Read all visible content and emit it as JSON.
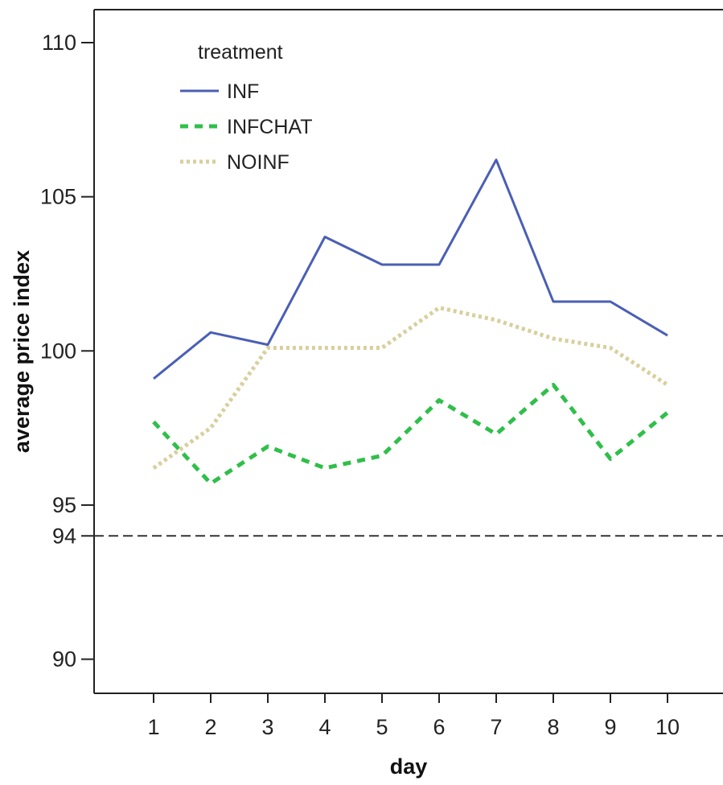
{
  "chart_data": {
    "type": "line",
    "title": "",
    "xlabel": "day",
    "ylabel": "average price index",
    "categories": [
      "1",
      "2",
      "3",
      "4",
      "5",
      "6",
      "7",
      "8",
      "9",
      "10"
    ],
    "yticks": [
      "110",
      "105",
      "100",
      "95",
      "94",
      "90"
    ],
    "ylim": [
      89,
      111
    ],
    "legend": {
      "title": "treatment",
      "placement": "top-left"
    },
    "series": [
      {
        "name": "INF",
        "style": "solid",
        "color": "#4a5fb5",
        "values": [
          99.1,
          100.6,
          100.2,
          103.7,
          102.8,
          102.8,
          106.2,
          101.6,
          101.6,
          100.5
        ]
      },
      {
        "name": "INFCHAT",
        "style": "dashed",
        "color": "#2fbf4a",
        "values": [
          97.7,
          95.7,
          96.9,
          96.2,
          96.6,
          98.4,
          97.3,
          98.9,
          96.5,
          98.0
        ]
      },
      {
        "name": "NOINF",
        "style": "dotted",
        "color": "#d8cf9c",
        "values": [
          96.2,
          97.5,
          100.1,
          100.1,
          100.1,
          101.4,
          101.0,
          100.4,
          100.1,
          98.9
        ]
      }
    ],
    "reference_line": {
      "value": 94,
      "style": "dashed",
      "color": "#333333"
    },
    "grid": false
  }
}
